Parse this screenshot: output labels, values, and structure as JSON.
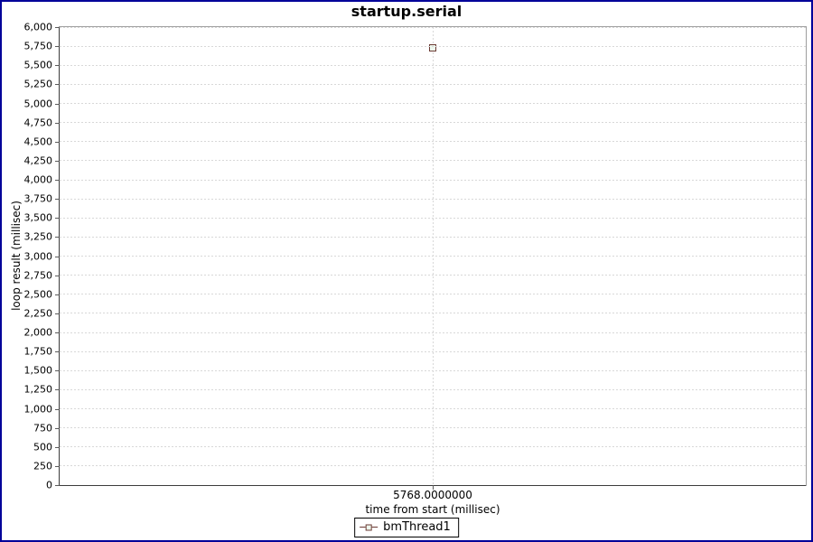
{
  "window": {
    "title": "startup.serial"
  },
  "chart_data": {
    "type": "line",
    "title": "startup.serial",
    "xlabel": "time from start (millisec)",
    "ylabel": "loop result (millisec)",
    "series": [
      {
        "name": "bmThread1",
        "marker": "square",
        "points": [
          {
            "x": 5768.0,
            "y": 5730
          }
        ]
      }
    ],
    "x_axis": {
      "label": "time from start (millisec)",
      "tick_labels": [
        "5768.0000000"
      ]
    },
    "y_axis": {
      "label": "loop result (millisec)",
      "min": 0,
      "max": 6000,
      "step": 250,
      "tick_labels": [
        "0",
        "250",
        "500",
        "750",
        "1,000",
        "1,250",
        "1,500",
        "1,750",
        "2,000",
        "2,250",
        "2,500",
        "2,750",
        "3,000",
        "3,250",
        "3,500",
        "3,750",
        "4,000",
        "4,250",
        "4,500",
        "4,750",
        "5,000",
        "5,250",
        "5,500",
        "5,750",
        "6,000"
      ]
    },
    "grid": true,
    "legend_position": "bottom",
    "legend": [
      "bmThread1"
    ]
  },
  "colors": {
    "outer_border": "#000099",
    "plot_border": "#9e9e9e",
    "axis": "#3c3c3c",
    "grid": "#d8d8d8",
    "series": "#6b3a33",
    "marker_fill": "#edf7ed",
    "text": "#000000"
  }
}
